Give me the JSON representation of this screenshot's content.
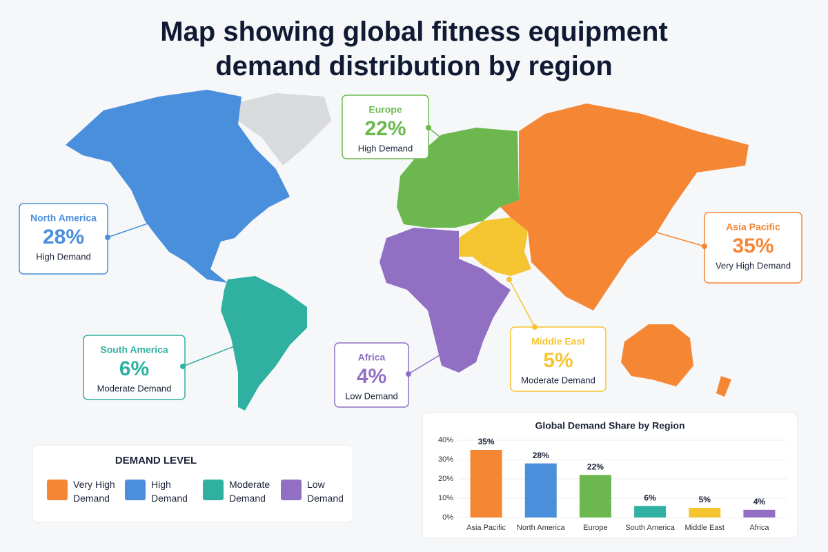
{
  "title": "Map showing global fitness equipment demand distribution by region",
  "regions": [
    {
      "level": "Very High Demand"
    },
    {
      "level": "High Demand"
    },
    {
      "level": "High Demand"
    },
    {
      "level": "Moderate Demand"
    },
    {
      "level": "Moderate Demand"
    },
    {
      "level": "Low Demand"
    }
  ],
  "legend": {
    "title": "DEMAND LEVEL",
    "items": [
      {
        "label": "Very High Demand",
        "color": "#f58634"
      },
      {
        "label": "High Demand",
        "color": "#4a8fdc"
      },
      {
        "label": "Moderate Demand",
        "color": "#2fb0a0"
      },
      {
        "label": "Low Demand",
        "color": "#9170c4"
      }
    ]
  },
  "chart_data": {
    "type": "bar",
    "title": "Global Demand Share by Region",
    "categories": [
      "Asia Pacific",
      "North America",
      "Europe",
      "South America",
      "Middle East",
      "Africa"
    ],
    "values": [
      35,
      28,
      22,
      6,
      5,
      4
    ],
    "value_labels": [
      "35%",
      "28%",
      "22%",
      "6%",
      "5%",
      "4%"
    ],
    "colors": [
      "#f58634",
      "#4a8fdc",
      "#6cb84f",
      "#2fb0a0",
      "#f5c431",
      "#9170c4"
    ],
    "ylim": [
      0,
      40
    ],
    "yticks": [
      {
        "value": 0,
        "label": "0%"
      },
      {
        "value": 10,
        "label": "10%"
      },
      {
        "value": 20,
        "label": "20%"
      },
      {
        "value": 30,
        "label": "30%"
      },
      {
        "value": 40,
        "label": "40%"
      }
    ],
    "grid": true
  }
}
